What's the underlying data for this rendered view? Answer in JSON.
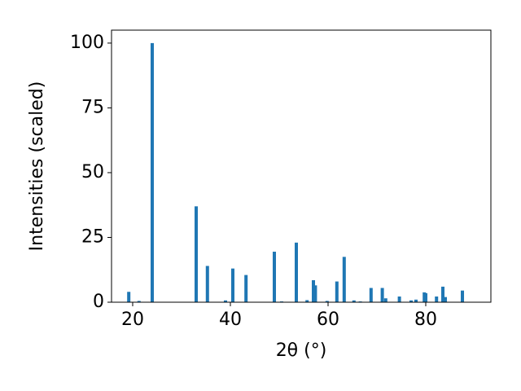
{
  "chart_data": {
    "type": "bar",
    "xlabel": "2θ (°)",
    "ylabel": "Intensities (scaled)",
    "color": "#1f77b4",
    "x": [
      19.2,
      21.3,
      24.0,
      33.0,
      35.3,
      39.0,
      40.5,
      43.2,
      49.0,
      50.5,
      53.5,
      55.7,
      57.0,
      57.4,
      59.8,
      61.8,
      63.3,
      65.3,
      66.6,
      68.8,
      71.1,
      71.8,
      74.6,
      77.0,
      78.0,
      79.7,
      80.0,
      82.2,
      83.5,
      84.0,
      87.5
    ],
    "values": [
      4,
      0.5,
      100,
      37,
      14,
      0.7,
      13,
      10.5,
      19.5,
      0.3,
      23,
      0.8,
      8.5,
      6.5,
      0.5,
      8,
      17.5,
      0.7,
      0.3,
      5.5,
      5.5,
      1.5,
      2.2,
      0.7,
      1,
      3.8,
      3.5,
      2.2,
      6,
      2,
      4.5
    ],
    "xlim": [
      15.67,
      93.33
    ],
    "ylim": [
      0,
      105
    ],
    "xticks": [
      20,
      40,
      60,
      80
    ],
    "yticks": [
      0,
      25,
      50,
      75,
      100
    ]
  }
}
